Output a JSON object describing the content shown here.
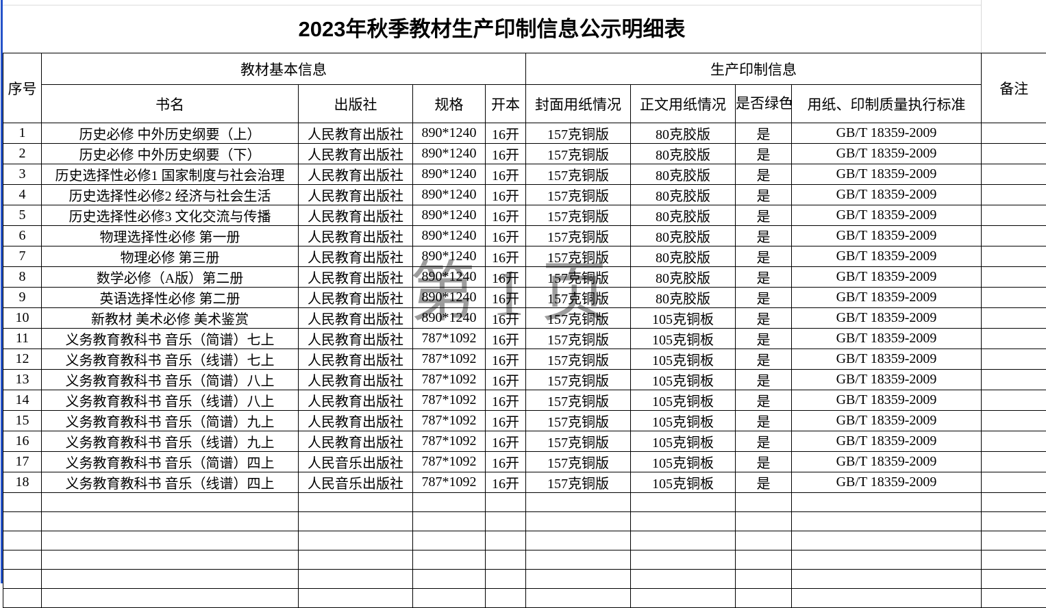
{
  "title": "2023年秋季教材生产印制信息公示明细表",
  "watermark": "第 1 页",
  "table": {
    "header": {
      "col_serial": "序号",
      "group_basic": "教材基本信息",
      "group_production": "生产印制信息",
      "col_book_title": "书名",
      "col_publisher": "出版社",
      "col_spec": "规格",
      "col_format": "开本",
      "col_cover_paper": "封面用纸情况",
      "col_body_paper": "正文用纸情况",
      "col_green_print": "是否绿色印刷",
      "col_standard": "用纸、印制质量执行标准",
      "col_remark": "备注"
    },
    "rows": [
      [
        "1",
        "历史必修 中外历史纲要（上）",
        "人民教育出版社",
        "890*1240",
        "16开",
        "157克铜版",
        "80克胶版",
        "是",
        "GB/T 18359-2009",
        ""
      ],
      [
        "2",
        "历史必修 中外历史纲要（下）",
        "人民教育出版社",
        "890*1240",
        "16开",
        "157克铜版",
        "80克胶版",
        "是",
        "GB/T 18359-2009",
        ""
      ],
      [
        "3",
        "历史选择性必修1 国家制度与社会治理",
        "人民教育出版社",
        "890*1240",
        "16开",
        "157克铜版",
        "80克胶版",
        "是",
        "GB/T 18359-2009",
        ""
      ],
      [
        "4",
        "历史选择性必修2 经济与社会生活",
        "人民教育出版社",
        "890*1240",
        "16开",
        "157克铜版",
        "80克胶版",
        "是",
        "GB/T 18359-2009",
        ""
      ],
      [
        "5",
        "历史选择性必修3 文化交流与传播",
        "人民教育出版社",
        "890*1240",
        "16开",
        "157克铜版",
        "80克胶版",
        "是",
        "GB/T 18359-2009",
        ""
      ],
      [
        "6",
        "物理选择性必修 第一册",
        "人民教育出版社",
        "890*1240",
        "16开",
        "157克铜版",
        "80克胶版",
        "是",
        "GB/T 18359-2009",
        ""
      ],
      [
        "7",
        "物理必修 第三册",
        "人民教育出版社",
        "890*1240",
        "16开",
        "157克铜版",
        "80克胶版",
        "是",
        "GB/T 18359-2009",
        ""
      ],
      [
        "8",
        "数学必修（A版）第二册",
        "人民教育出版社",
        "890*1240",
        "16开",
        "157克铜版",
        "80克胶版",
        "是",
        "GB/T 18359-2009",
        ""
      ],
      [
        "9",
        "英语选择性必修 第二册",
        "人民教育出版社",
        "890*1240",
        "16开",
        "157克铜版",
        "80克胶版",
        "是",
        "GB/T 18359-2009",
        ""
      ],
      [
        "10",
        "新教材 美术必修 美术鉴赏",
        "人民教育出版社",
        "890*1240",
        "16开",
        "157克铜版",
        "105克铜板",
        "是",
        "GB/T 18359-2009",
        ""
      ],
      [
        "11",
        "义务教育教科书 音乐（简谱）七上",
        "人民教育出版社",
        "787*1092",
        "16开",
        "157克铜版",
        "105克铜板",
        "是",
        "GB/T 18359-2009",
        ""
      ],
      [
        "12",
        "义务教育教科书 音乐（线谱）七上",
        "人民教育出版社",
        "787*1092",
        "16开",
        "157克铜版",
        "105克铜板",
        "是",
        "GB/T 18359-2009",
        ""
      ],
      [
        "13",
        "义务教育教科书 音乐（简谱）八上",
        "人民教育出版社",
        "787*1092",
        "16开",
        "157克铜版",
        "105克铜板",
        "是",
        "GB/T 18359-2009",
        ""
      ],
      [
        "14",
        "义务教育教科书 音乐（线谱）八上",
        "人民教育出版社",
        "787*1092",
        "16开",
        "157克铜版",
        "105克铜板",
        "是",
        "GB/T 18359-2009",
        ""
      ],
      [
        "15",
        "义务教育教科书 音乐（简谱）九上",
        "人民教育出版社",
        "787*1092",
        "16开",
        "157克铜版",
        "105克铜板",
        "是",
        "GB/T 18359-2009",
        ""
      ],
      [
        "16",
        "义务教育教科书 音乐（线谱）九上",
        "人民教育出版社",
        "787*1092",
        "16开",
        "157克铜版",
        "105克铜板",
        "是",
        "GB/T 18359-2009",
        ""
      ],
      [
        "17",
        "义务教育教科书 音乐（简谱）四上",
        "人民音乐出版社",
        "787*1092",
        "16开",
        "157克铜版",
        "105克铜板",
        "是",
        "GB/T 18359-2009",
        ""
      ],
      [
        "18",
        "义务教育教科书 音乐（线谱）四上",
        "人民音乐出版社",
        "787*1092",
        "16开",
        "157克铜版",
        "105克铜板",
        "是",
        "GB/T 18359-2009",
        ""
      ]
    ],
    "empty_row_count": 6
  },
  "colors": {
    "page_boundary_blue": "#2553c9",
    "grid_black": "#000000",
    "faint_gridline": "#dcdcdc",
    "watermark_gray": "#9d9d9d"
  }
}
